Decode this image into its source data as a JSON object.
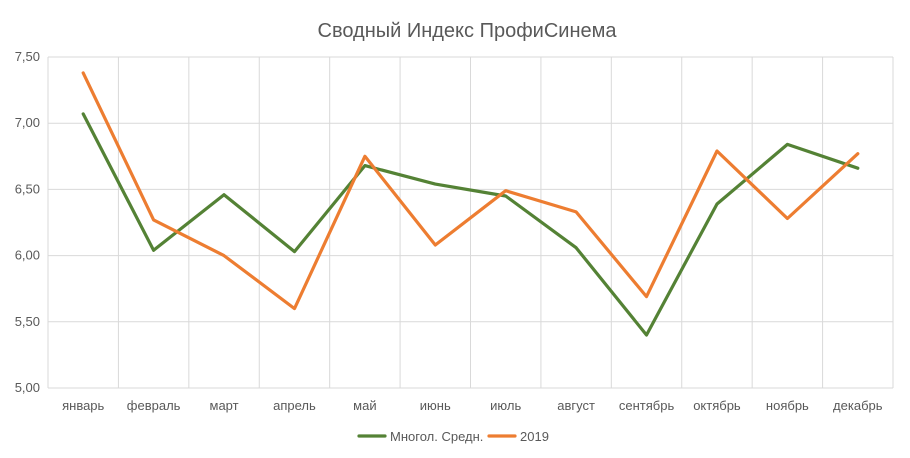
{
  "chart_data": {
    "type": "line",
    "title": "Сводный Индекс ПрофиСинема",
    "categories": [
      "январь",
      "февраль",
      "март",
      "апрель",
      "май",
      "июнь",
      "июль",
      "август",
      "сентябрь",
      "октябрь",
      "ноябрь",
      "декабрь"
    ],
    "series": [
      {
        "name": "Многол. Средн.",
        "color": "#548235",
        "values": [
          7.07,
          6.04,
          6.46,
          6.03,
          6.68,
          6.54,
          6.45,
          6.06,
          5.4,
          6.39,
          6.84,
          6.66
        ]
      },
      {
        "name": "2019",
        "color": "#ed7d31",
        "values": [
          7.38,
          6.27,
          6.0,
          5.6,
          6.75,
          6.08,
          6.49,
          6.33,
          5.69,
          6.79,
          6.28,
          6.77
        ]
      }
    ],
    "ylim": [
      5.0,
      7.5
    ],
    "yticks": [
      "5,00",
      "5,50",
      "6,00",
      "6,50",
      "7,00",
      "7,50"
    ],
    "ytick_values": [
      5.0,
      5.5,
      6.0,
      6.5,
      7.0,
      7.5
    ],
    "grid": true,
    "legend": "bottom"
  }
}
